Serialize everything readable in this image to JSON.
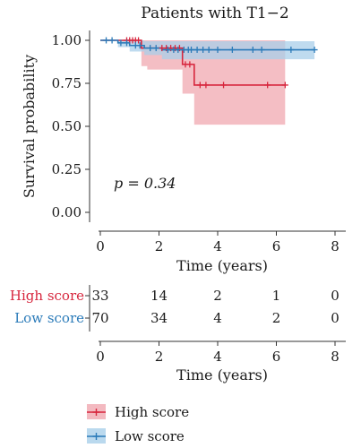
{
  "chart_data": {
    "type": "line",
    "subtype": "kaplan-meier",
    "title": "Patients with T1−2",
    "xlabel": "Time (years)",
    "ylabel": "Survival probability",
    "xlim": [
      0,
      8
    ],
    "ylim": [
      0,
      1
    ],
    "x_ticks": [
      "0",
      "2",
      "4",
      "6",
      "8"
    ],
    "y_ticks": [
      "0.00",
      "0.25",
      "0.50",
      "0.75",
      "1.00"
    ],
    "annotation": "p = 0.34",
    "grid": false,
    "series": [
      {
        "name": "High score",
        "color": "#d7263d",
        "ci_color": "#f0a8b0",
        "steps": [
          [
            0,
            1.0
          ],
          [
            1.4,
            0.955
          ],
          [
            1.6,
            0.955
          ],
          [
            2.8,
            0.86
          ],
          [
            3.2,
            0.74
          ],
          [
            6.3,
            0.74
          ]
        ],
        "ci": [
          [
            0,
            1.0,
            1.0
          ],
          [
            1.4,
            0.85,
            1.0
          ],
          [
            1.6,
            0.83,
            1.0
          ],
          [
            2.8,
            0.69,
            1.0
          ],
          [
            3.2,
            0.51,
            1.0
          ],
          [
            6.3,
            0.51,
            1.0
          ]
        ],
        "censor": [
          0.9,
          1.0,
          1.1,
          1.2,
          1.3,
          2.1,
          2.25,
          2.4,
          2.55,
          2.7,
          2.9,
          3.05,
          3.4,
          3.6,
          4.2,
          5.7,
          6.3
        ]
      },
      {
        "name": "Low score",
        "color": "#2b7bb9",
        "ci_color": "#a9cfea",
        "steps": [
          [
            0,
            1.0
          ],
          [
            0.6,
            0.985
          ],
          [
            1.0,
            0.97
          ],
          [
            1.5,
            0.955
          ],
          [
            2.1,
            0.945
          ],
          [
            7.3,
            0.945
          ]
        ],
        "ci": [
          [
            0,
            1.0,
            1.0
          ],
          [
            0.6,
            0.96,
            1.0
          ],
          [
            1.0,
            0.935,
            1.0
          ],
          [
            1.5,
            0.915,
            0.995
          ],
          [
            2.1,
            0.89,
            0.995
          ],
          [
            7.3,
            0.89,
            0.995
          ]
        ],
        "censor": [
          0.2,
          0.4,
          0.7,
          0.9,
          1.2,
          1.35,
          1.7,
          1.9,
          2.3,
          2.5,
          2.65,
          2.85,
          3.0,
          3.1,
          3.3,
          3.5,
          3.7,
          4.0,
          4.5,
          5.2,
          5.5,
          6.5,
          7.3
        ]
      }
    ],
    "risk_table": {
      "xlabel": "Time (years)",
      "times": [
        "0",
        "2",
        "4",
        "6",
        "8"
      ],
      "rows": [
        {
          "label": "High score",
          "color": "#d7263d",
          "counts": [
            "33",
            "14",
            "2",
            "1",
            "0"
          ]
        },
        {
          "label": "Low score",
          "color": "#2b7bb9",
          "counts": [
            "70",
            "34",
            "4",
            "2",
            "0"
          ]
        }
      ]
    },
    "legend": {
      "position": "bottom-left",
      "entries": [
        "High score",
        "Low score"
      ]
    }
  }
}
